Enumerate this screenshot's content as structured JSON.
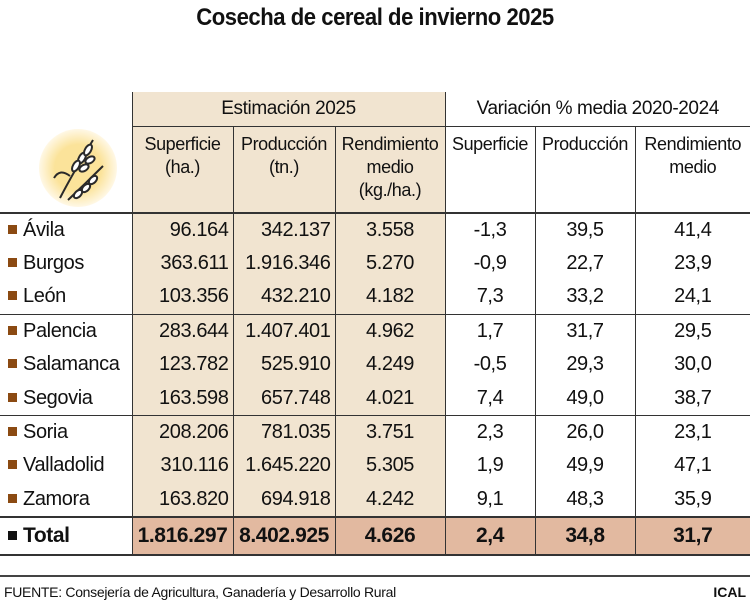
{
  "title": "Cosecha de cereal de invierno 2025",
  "groups": {
    "estimacion": "Estimación 2025",
    "variacion": "Variación % media 2020-2024"
  },
  "columns": {
    "est": [
      "Superficie\n(ha.)",
      "Producción\n(tn.)",
      "Rendimiento\nmedio\n(kg./ha.)"
    ],
    "var": [
      "Superficie",
      "Producción",
      "Rendimiento\nmedio"
    ]
  },
  "icon": "wheat-icon",
  "colors": {
    "estimacion_bg": "#f1e4d0",
    "total_bg": "#e2b9a0",
    "bullet": "#8b4a12"
  },
  "rows": [
    {
      "name": "Ávila",
      "v": [
        "96.164",
        "342.137",
        "3.558",
        "-1,3",
        "39,5",
        "41,4"
      ]
    },
    {
      "name": "Burgos",
      "v": [
        "363.611",
        "1.916.346",
        "5.270",
        "-0,9",
        "22,7",
        "23,9"
      ]
    },
    {
      "name": "León",
      "v": [
        "103.356",
        "432.210",
        "4.182",
        "7,3",
        "33,2",
        "24,1"
      ]
    },
    {
      "name": "Palencia",
      "v": [
        "283.644",
        "1.407.401",
        "4.962",
        "1,7",
        "31,7",
        "29,5"
      ]
    },
    {
      "name": "Salamanca",
      "v": [
        "123.782",
        "525.910",
        "4.249",
        "-0,5",
        "29,3",
        "30,0"
      ]
    },
    {
      "name": "Segovia",
      "v": [
        "163.598",
        "657.748",
        "4.021",
        "7,4",
        "49,0",
        "38,7"
      ]
    },
    {
      "name": "Soria",
      "v": [
        "208.206",
        "781.035",
        "3.751",
        "2,3",
        "26,0",
        "23,1"
      ]
    },
    {
      "name": "Valladolid",
      "v": [
        "310.116",
        "1.645.220",
        "5.305",
        "1,9",
        "49,9",
        "47,1"
      ]
    },
    {
      "name": "Zamora",
      "v": [
        "163.820",
        "694.918",
        "4.242",
        "9,1",
        "48,3",
        "35,9"
      ]
    }
  ],
  "total": {
    "name": "Total",
    "v": [
      "1.816.297",
      "8.402.925",
      "4.626",
      "2,4",
      "34,8",
      "31,7"
    ]
  },
  "footer": {
    "source": "FUENTE: Consejería de Agricultura, Ganadería y Desarrollo Rural",
    "logo": "ICAL"
  }
}
